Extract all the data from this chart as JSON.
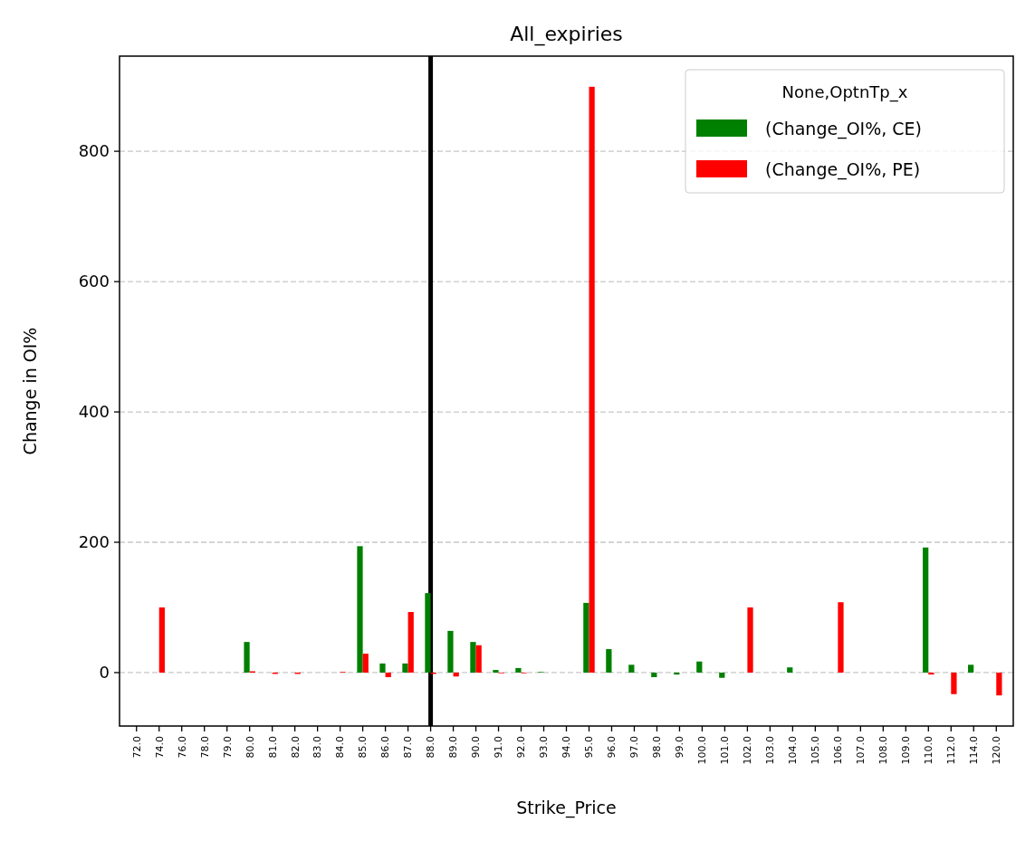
{
  "chart_data": {
    "type": "bar",
    "title": "All_expiries",
    "xlabel": "Strike_Price",
    "ylabel": "Change in OI%",
    "legend_title": "None,OptnTp_x",
    "categories": [
      "72.0",
      "74.0",
      "76.0",
      "78.0",
      "79.0",
      "80.0",
      "81.0",
      "82.0",
      "83.0",
      "84.0",
      "85.0",
      "86.0",
      "87.0",
      "88.0",
      "89.0",
      "90.0",
      "91.0",
      "92.0",
      "93.0",
      "94.0",
      "95.0",
      "96.0",
      "97.0",
      "98.0",
      "99.0",
      "100.0",
      "101.0",
      "102.0",
      "103.0",
      "104.0",
      "105.0",
      "106.0",
      "107.0",
      "108.0",
      "109.0",
      "110.0",
      "112.0",
      "114.0",
      "120.0"
    ],
    "series": [
      {
        "name": "(Change_OI%, CE)",
        "color": "#008000",
        "values": [
          0,
          0,
          0,
          0,
          0,
          47,
          0,
          0,
          0,
          0,
          194,
          14,
          14,
          122,
          64,
          47,
          4,
          7,
          1,
          0,
          107,
          36,
          12,
          -7,
          -3,
          17,
          -8,
          0,
          0,
          8,
          0,
          0,
          0,
          0,
          0,
          192,
          0,
          12,
          0
        ]
      },
      {
        "name": "(Change_OI%, PE)",
        "color": "#ff0000",
        "values": [
          0,
          100,
          0,
          0,
          0,
          2,
          -2,
          -2,
          0,
          1,
          29,
          -7,
          93,
          -2,
          -6,
          42,
          -1,
          -1,
          0,
          0,
          899,
          0,
          0,
          0,
          0,
          0,
          0,
          100,
          0,
          0,
          0,
          108,
          0,
          0,
          0,
          -3,
          -33,
          0,
          -35
        ]
      }
    ],
    "ylim": [
      -82,
      946
    ],
    "yticks": [
      0,
      200,
      400,
      600,
      800
    ],
    "grid": "y",
    "legend": "top right",
    "ref_lines": [
      {
        "axis": "x",
        "value": "88.0",
        "color": "#000000"
      }
    ]
  }
}
